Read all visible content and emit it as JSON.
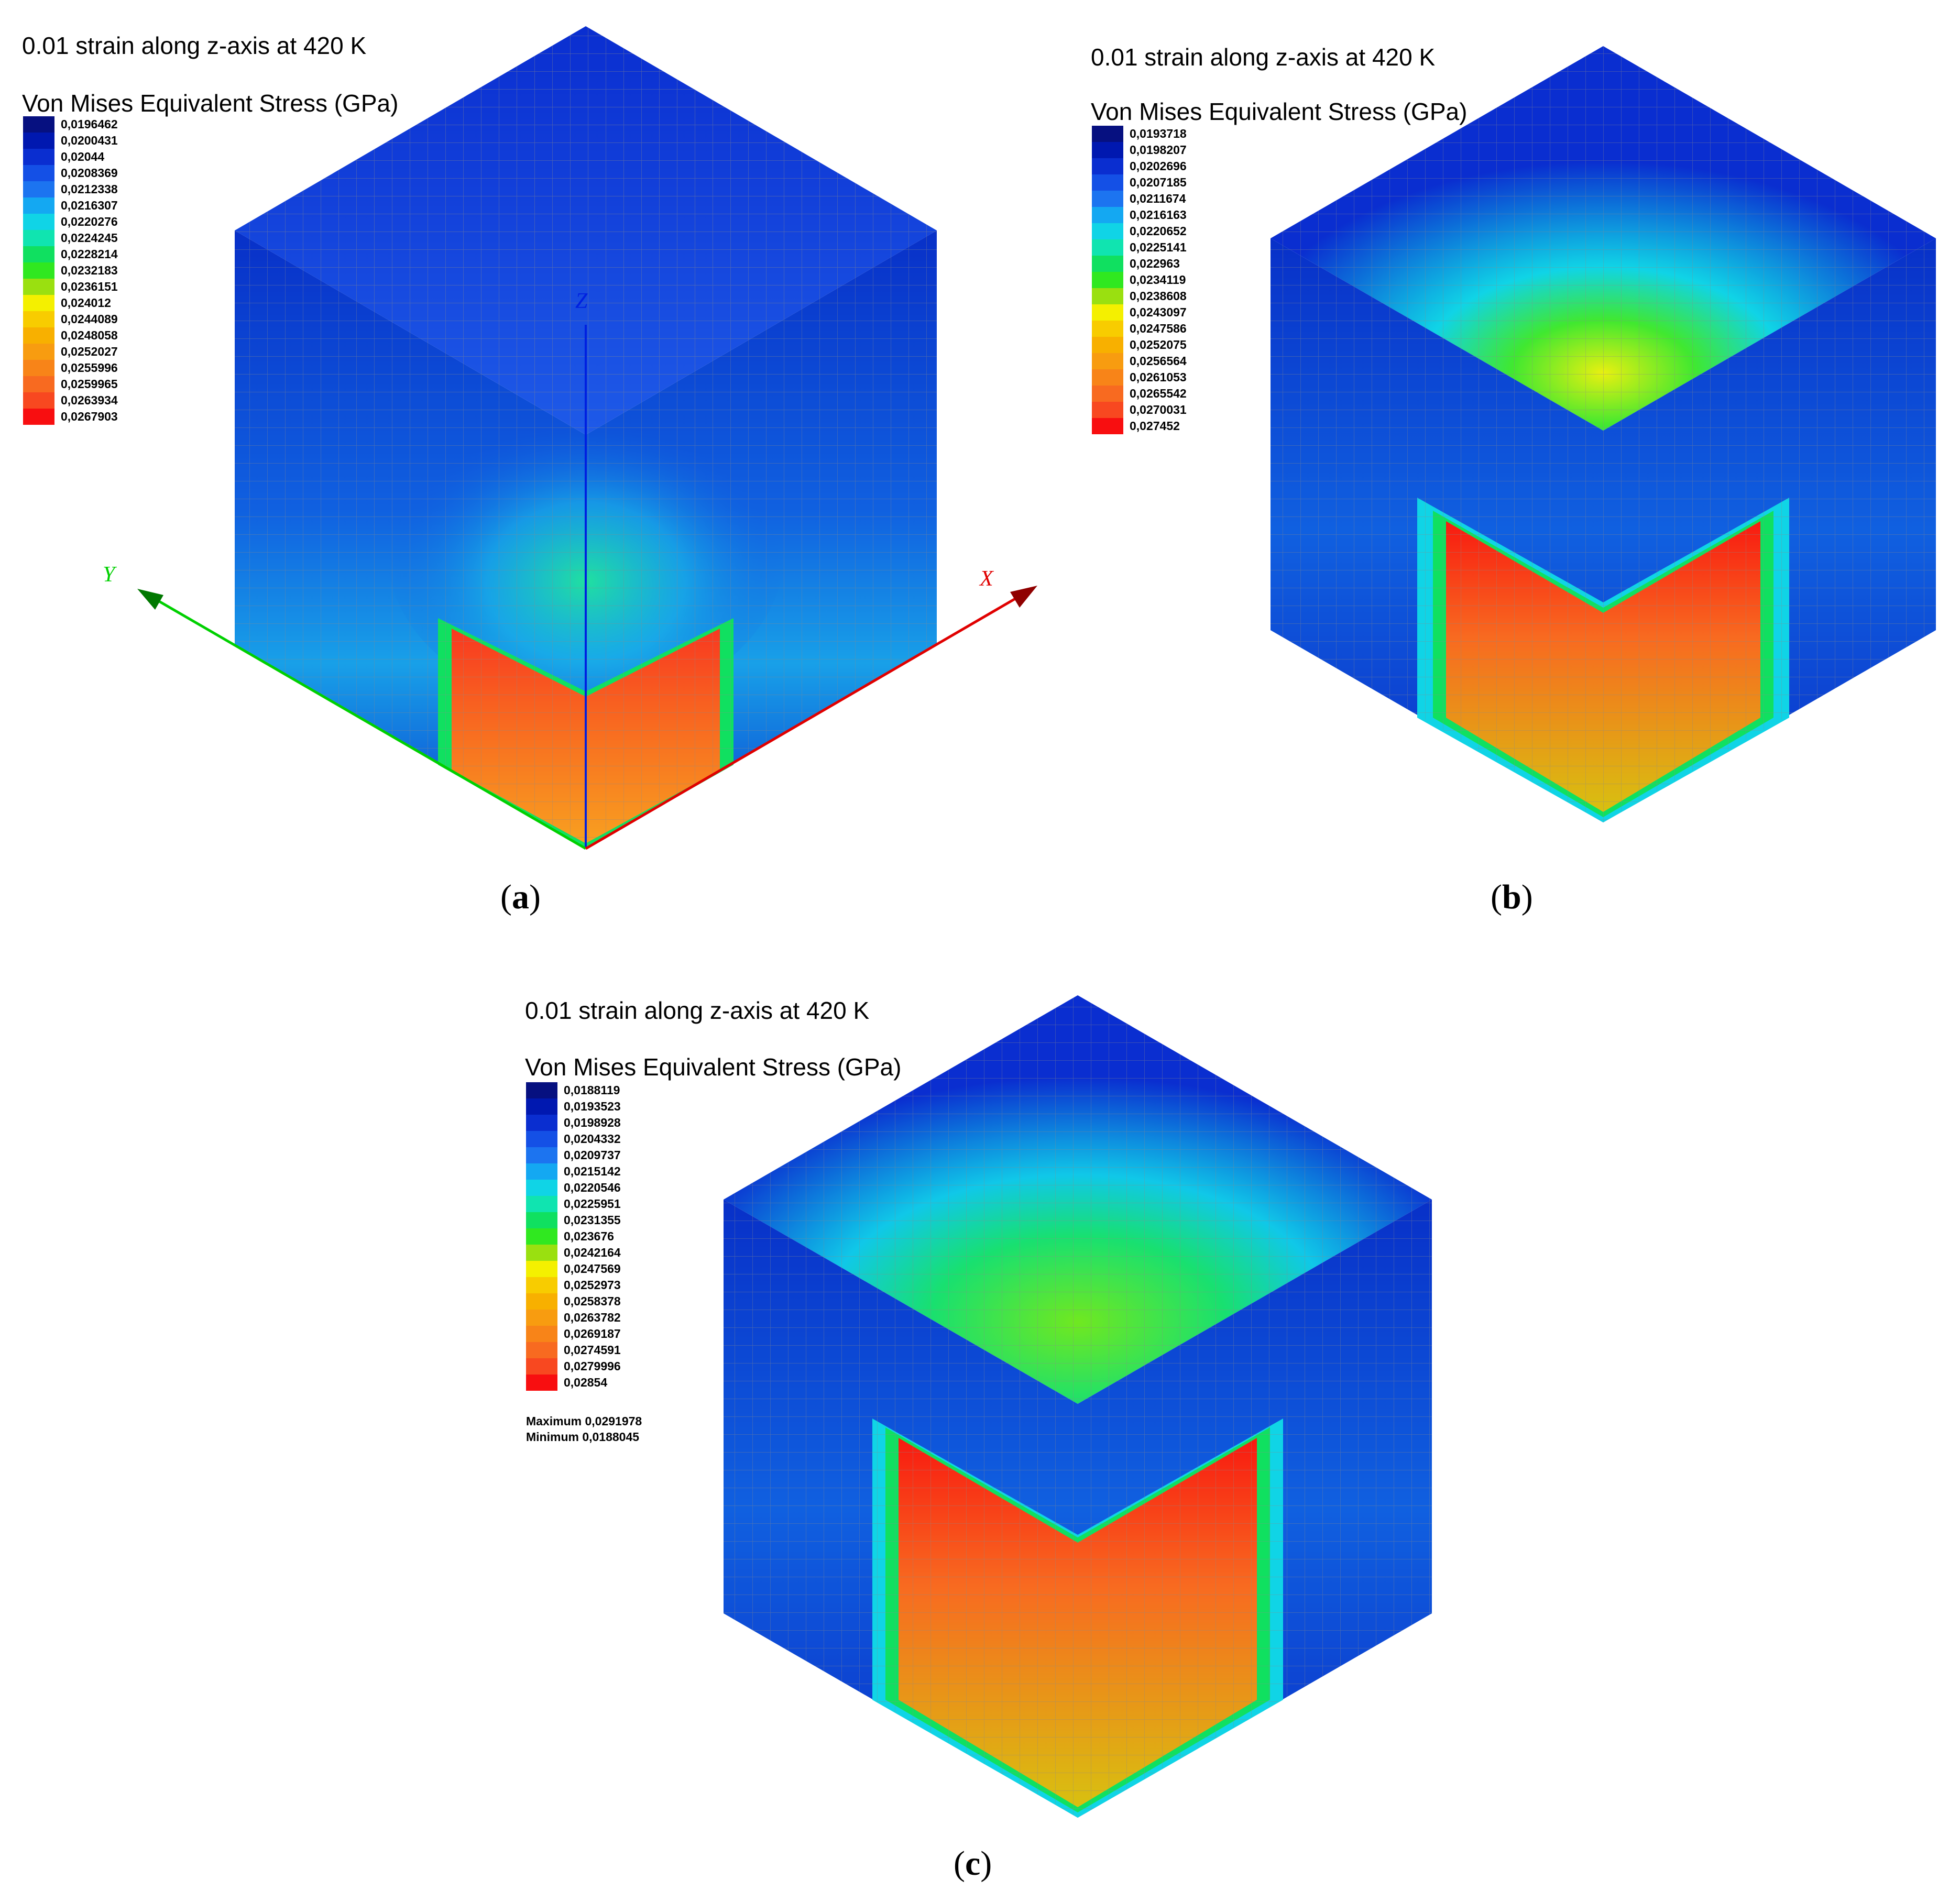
{
  "panels": [
    {
      "id": "a",
      "title": "0.01 strain along z-axis at 420 K",
      "legend_title": "Von Mises Equivalent Stress (GPa)",
      "ticks": [
        "0,0196462",
        "0,0200431",
        "0,02044",
        "0,0208369",
        "0,0212338",
        "0,0216307",
        "0,0220276",
        "0,0224245",
        "0,0228214",
        "0,0232183",
        "0,0236151",
        "0,024012",
        "0,0244089",
        "0,0248058",
        "0,0252027",
        "0,0255996",
        "0,0259965",
        "0,0263934",
        "0,0267903"
      ],
      "axes": {
        "x": "X",
        "y": "Y",
        "z": "Z"
      },
      "caption_letter": "a"
    },
    {
      "id": "b",
      "title": "0.01 strain along z-axis at 420 K",
      "legend_title": "Von Mises Equivalent Stress (GPa)",
      "ticks": [
        "0,0193718",
        "0,0198207",
        "0,0202696",
        "0,0207185",
        "0,0211674",
        "0,0216163",
        "0,0220652",
        "0,0225141",
        "0,022963",
        "0,0234119",
        "0,0238608",
        "0,0243097",
        "0,0247586",
        "0,0252075",
        "0,0256564",
        "0,0261053",
        "0,0265542",
        "0,0270031",
        "0,027452"
      ],
      "caption_letter": "b"
    },
    {
      "id": "c",
      "title": "0.01 strain along z-axis at 420 K",
      "legend_title": "Von Mises Equivalent Stress (GPa)",
      "ticks": [
        "0,0188119",
        "0,0193523",
        "0,0198928",
        "0,0204332",
        "0,0209737",
        "0,0215142",
        "0,0220546",
        "0,0225951",
        "0,0231355",
        "0,023676",
        "0,0242164",
        "0,0247569",
        "0,0252973",
        "0,0258378",
        "0,0263782",
        "0,0269187",
        "0,0274591",
        "0,0279996",
        "0,02854"
      ],
      "maximum": "Maximum 0,0291978",
      "minimum": "Minimum 0,0188045",
      "caption_letter": "c"
    }
  ],
  "colors": {
    "scale": [
      "#061080",
      "#0018b0",
      "#0a2ed0",
      "#1450e6",
      "#1c74f0",
      "#14a8f2",
      "#10d4e6",
      "#10e4b0",
      "#10e060",
      "#30e820",
      "#9ae010",
      "#f4f000",
      "#f8cc00",
      "#f8b000",
      "#f89c10",
      "#f88418",
      "#f86a20",
      "#f84820",
      "#f80e10"
    ],
    "x_axis": "#e00000",
    "y_axis": "#00d000",
    "z_axis": "#0020e0",
    "grid": "#8a8a8a"
  }
}
